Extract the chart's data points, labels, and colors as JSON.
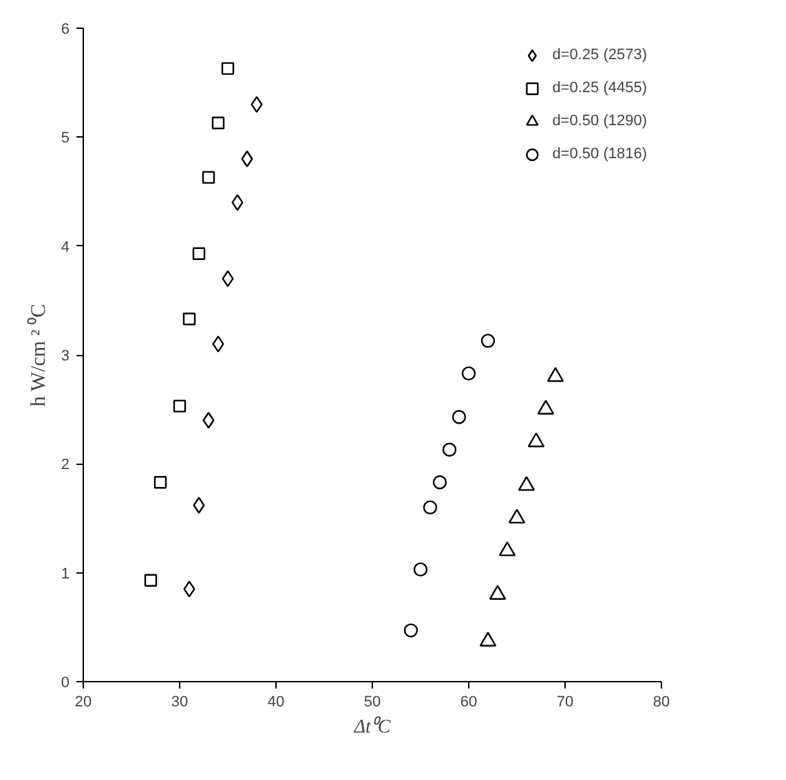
{
  "chart_data": {
    "type": "scatter",
    "xlabel": "Δt⁰C",
    "ylabel": "h W/cm ² ⁰C",
    "xlim": [
      20,
      80
    ],
    "xticks": [
      20,
      30,
      40,
      50,
      60,
      70,
      80
    ],
    "ylim": [
      0,
      6
    ],
    "yticks": [
      0,
      1,
      2,
      3,
      4,
      5,
      6
    ],
    "grid": false,
    "legend": "top right",
    "series": [
      {
        "name": "d=0.25 (2573)",
        "color": "#000000",
        "marker": "diamond",
        "x": [
          31,
          32,
          33,
          34,
          35,
          36,
          37,
          38
        ],
        "values": [
          0.85,
          1.62,
          2.4,
          3.1,
          3.7,
          4.4,
          4.8,
          5.3
        ]
      },
      {
        "name": "d=0.25 (4455)",
        "color": "#000000",
        "marker": "square",
        "x": [
          27,
          28,
          30,
          31,
          32,
          33,
          34,
          35
        ],
        "values": [
          0.93,
          1.83,
          2.53,
          3.33,
          3.93,
          4.63,
          5.13,
          5.63
        ]
      },
      {
        "name": "d=0.50 (1290)",
        "color": "#000000",
        "marker": "triangle",
        "x": [
          62,
          63,
          64,
          65,
          66,
          67,
          68,
          69
        ],
        "values": [
          0.37,
          0.8,
          1.2,
          1.5,
          1.8,
          2.2,
          2.5,
          2.8
        ]
      },
      {
        "name": "d=0.50 (1816)",
        "color": "#000000",
        "marker": "circle",
        "x": [
          54,
          55,
          56,
          57,
          58,
          59,
          60,
          62
        ],
        "values": [
          0.47,
          1.03,
          1.6,
          1.83,
          2.13,
          2.43,
          2.83,
          3.13
        ]
      }
    ]
  }
}
